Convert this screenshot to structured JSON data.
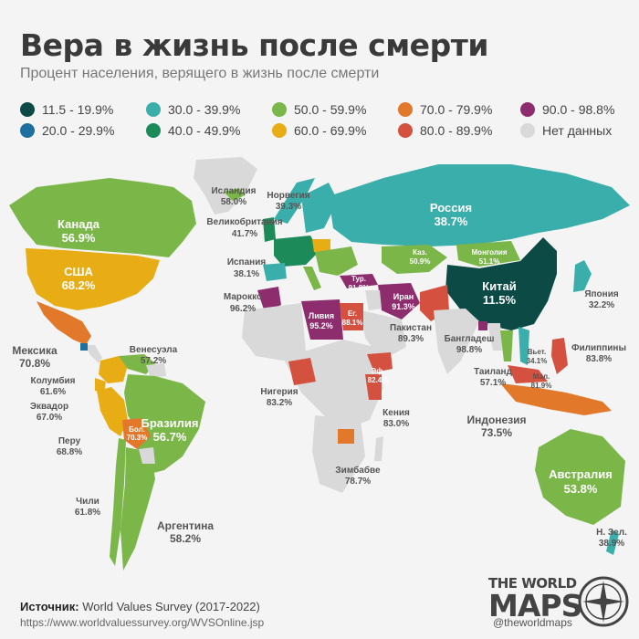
{
  "title": "Вера в жизнь после смерти",
  "subtitle": "Процент населения, верящего в жизнь после смерти",
  "legend": [
    {
      "label": "11.5 - 19.9%",
      "color": "#0b4a45"
    },
    {
      "label": "20.0 - 29.9%",
      "color": "#1d6fa0"
    },
    {
      "label": "30.0 - 39.9%",
      "color": "#3aaeaa"
    },
    {
      "label": "40.0 - 49.9%",
      "color": "#1d8a5a"
    },
    {
      "label": "50.0 - 59.9%",
      "color": "#7ab648"
    },
    {
      "label": "60.0 - 69.9%",
      "color": "#e8ac14"
    },
    {
      "label": "70.0 - 79.9%",
      "color": "#e2782a"
    },
    {
      "label": "80.0 - 89.9%",
      "color": "#d4503f"
    },
    {
      "label": "90.0 - 98.8%",
      "color": "#8e2d6e"
    },
    {
      "label": "Нет данных",
      "color": "#d9d9d9"
    }
  ],
  "countries": [
    {
      "name": "Исландия",
      "value": "58.0%"
    },
    {
      "name": "Норвегия",
      "value": "39.3%"
    },
    {
      "name": "Великобритания",
      "value": "41.7%"
    },
    {
      "name": "Испания",
      "value": "38.1%"
    },
    {
      "name": "Марокко",
      "value": "96.2%"
    },
    {
      "name": "Россия",
      "value": "38.7%"
    },
    {
      "name": "Канада",
      "value": "56.9%"
    },
    {
      "name": "США",
      "value": "68.2%"
    },
    {
      "name": "Мексика",
      "value": "70.8%"
    },
    {
      "name": "Венесуэла",
      "value": "57.2%"
    },
    {
      "name": "Колумбия",
      "value": "61.6%"
    },
    {
      "name": "Эквадор",
      "value": "67.0%"
    },
    {
      "name": "Перу",
      "value": "68.8%"
    },
    {
      "name": "Бразилия",
      "value": "56.7%"
    },
    {
      "name": "Бол.",
      "value": "70.3%"
    },
    {
      "name": "Чили",
      "value": "61.8%"
    },
    {
      "name": "Аргентина",
      "value": "58.2%"
    },
    {
      "name": "Каз.",
      "value": "50.9%"
    },
    {
      "name": "Монголия",
      "value": "51.1%"
    },
    {
      "name": "Китай",
      "value": "11.5%"
    },
    {
      "name": "Япония",
      "value": "32.2%"
    },
    {
      "name": "Тур.",
      "value": "91.8%"
    },
    {
      "name": "Иран",
      "value": "91.3%"
    },
    {
      "name": "Ливия",
      "value": "95.2%"
    },
    {
      "name": "Ег.",
      "value": "88.1%"
    },
    {
      "name": "Пакистан",
      "value": "89.3%"
    },
    {
      "name": "Бангладеш",
      "value": "98.8%"
    },
    {
      "name": "Вьет.",
      "value": "34.1%"
    },
    {
      "name": "Филиппины",
      "value": "83.8%"
    },
    {
      "name": "Таиланд",
      "value": "57.1%"
    },
    {
      "name": "Мал.",
      "value": "81.9%"
    },
    {
      "name": "Индонезия",
      "value": "73.5%"
    },
    {
      "name": "Нигерия",
      "value": "83.2%"
    },
    {
      "name": "Эф.",
      "value": "82.4%"
    },
    {
      "name": "Кения",
      "value": "83.0%"
    },
    {
      "name": "Зимбабве",
      "value": "78.7%"
    },
    {
      "name": "Австралия",
      "value": "53.8%"
    },
    {
      "name": "Н. Зел.",
      "value": "38.9%"
    }
  ],
  "source_label": "Источник:",
  "source_text": "World Values Survey (2017-2022)",
  "url": "https://www.worldvaluessurvey.org/WVSOnline.jsp",
  "logo_line1": "THE WORLD",
  "logo_line2": "MAPS",
  "handle": "@theworldmaps"
}
